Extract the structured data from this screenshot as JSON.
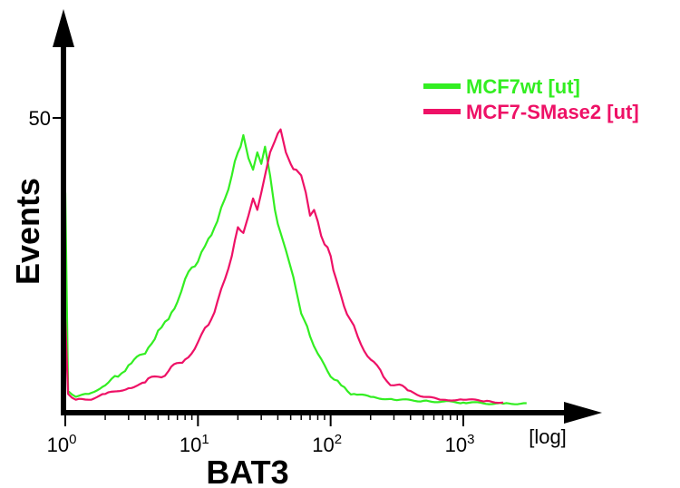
{
  "chart_data": {
    "type": "line",
    "title": "",
    "xlabel": "BAT3",
    "ylabel": "Events",
    "x_scale": "log",
    "x_unit_label": "[log]",
    "xlim": [
      1,
      4000
    ],
    "ylim": [
      0,
      60
    ],
    "x_ticks": [
      {
        "value": 1,
        "base": "10",
        "exp": "0"
      },
      {
        "value": 10,
        "base": "10",
        "exp": "1"
      },
      {
        "value": 100,
        "base": "10",
        "exp": "2"
      },
      {
        "value": 1000,
        "base": "10",
        "exp": "3"
      }
    ],
    "y_ticks": [
      {
        "value": 50,
        "label": "50"
      }
    ],
    "legend_position": "top-right",
    "series": [
      {
        "name": "MCF7wt [ut]",
        "color": "#33ee22",
        "x": [
          1.0,
          1.05,
          1.2,
          1.5,
          2,
          2.5,
          3,
          4,
          5,
          6,
          7,
          8,
          9,
          10,
          12,
          14,
          16,
          18,
          20,
          22,
          24,
          26,
          28,
          30,
          32,
          35,
          38,
          42,
          46,
          50,
          55,
          60,
          70,
          80,
          90,
          100,
          120,
          150,
          200,
          300,
          500,
          1000,
          2000,
          3000
        ],
        "y": [
          37,
          2.5,
          1.5,
          2,
          3.5,
          5,
          7,
          9,
          13,
          15,
          18,
          22,
          24,
          25,
          29,
          32,
          36,
          40,
          44,
          47,
          43,
          41,
          44,
          42,
          45,
          40,
          34,
          30,
          27,
          24,
          20,
          16,
          12,
          9,
          7,
          5,
          3.5,
          2,
          1.5,
          1,
          0.8,
          0.5,
          0.3,
          0.4
        ]
      },
      {
        "name": "MCF7-SMase2 [ut]",
        "color": "#ee1166",
        "x": [
          1.0,
          1.05,
          1.2,
          1.5,
          2,
          3,
          4,
          5,
          6,
          8,
          10,
          12,
          14,
          16,
          18,
          20,
          22,
          24,
          26,
          28,
          30,
          32,
          35,
          38,
          42,
          46,
          50,
          55,
          60,
          65,
          70,
          75,
          80,
          90,
          100,
          110,
          120,
          140,
          160,
          200,
          250,
          300,
          400,
          500,
          700,
          1000,
          1500,
          2000
        ],
        "y": [
          15,
          2,
          1,
          1,
          2,
          3,
          4,
          5,
          6,
          8,
          11,
          14,
          18,
          22,
          26,
          31,
          30,
          33,
          36,
          34,
          37,
          40,
          44,
          46,
          48,
          44,
          42,
          41,
          40,
          37,
          33,
          34,
          32,
          28,
          26,
          22,
          19,
          15,
          12,
          8,
          5,
          3.5,
          2.5,
          1.5,
          1,
          1,
          0.8,
          0.5
        ]
      }
    ]
  }
}
